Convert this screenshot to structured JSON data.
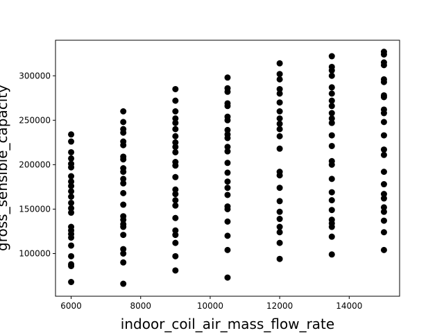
{
  "chart_data": {
    "type": "scatter",
    "xlabel": "indoor_coil_air_mass_flow_rate",
    "ylabel": "gross_sensible_capacity",
    "xlim": [
      5550,
      15450
    ],
    "ylim": [
      52000,
      340000
    ],
    "xticks": [
      6000,
      8000,
      10000,
      12000,
      14000
    ],
    "yticks": [
      100000,
      150000,
      200000,
      250000,
      300000
    ],
    "grid": false,
    "marker_color": "#000000",
    "series": [
      {
        "points": [
          [
            6000,
            234000
          ],
          [
            6000,
            226000
          ],
          [
            6000,
            214000
          ],
          [
            6000,
            207000
          ],
          [
            6000,
            201000
          ],
          [
            6000,
            197000
          ],
          [
            6000,
            187000
          ],
          [
            6000,
            181000
          ],
          [
            6000,
            176000
          ],
          [
            6000,
            170000
          ],
          [
            6000,
            164000
          ],
          [
            6000,
            157000
          ],
          [
            6000,
            151000
          ],
          [
            6000,
            146000
          ],
          [
            6000,
            130000
          ],
          [
            6000,
            126000
          ],
          [
            6000,
            122000
          ],
          [
            6000,
            118000
          ],
          [
            6000,
            109000
          ],
          [
            6000,
            97000
          ],
          [
            6000,
            88000
          ],
          [
            6000,
            86000
          ],
          [
            6000,
            68000
          ],
          [
            7500,
            260000
          ],
          [
            7500,
            248000
          ],
          [
            7500,
            240000
          ],
          [
            7500,
            236000
          ],
          [
            7500,
            226000
          ],
          [
            7500,
            222000
          ],
          [
            7500,
            209000
          ],
          [
            7500,
            206000
          ],
          [
            7500,
            196000
          ],
          [
            7500,
            192000
          ],
          [
            7500,
            184000
          ],
          [
            7500,
            179000
          ],
          [
            7500,
            168000
          ],
          [
            7500,
            155000
          ],
          [
            7500,
            142000
          ],
          [
            7500,
            138000
          ],
          [
            7500,
            133000
          ],
          [
            7500,
            130000
          ],
          [
            7500,
            121000
          ],
          [
            7500,
            105000
          ],
          [
            7500,
            100000
          ],
          [
            7500,
            90000
          ],
          [
            7500,
            66000
          ],
          [
            9000,
            285000
          ],
          [
            9000,
            272000
          ],
          [
            9000,
            260000
          ],
          [
            9000,
            252000
          ],
          [
            9000,
            247000
          ],
          [
            9000,
            240000
          ],
          [
            9000,
            232000
          ],
          [
            9000,
            225000
          ],
          [
            9000,
            220000
          ],
          [
            9000,
            214000
          ],
          [
            9000,
            203000
          ],
          [
            9000,
            199000
          ],
          [
            9000,
            186000
          ],
          [
            9000,
            172000
          ],
          [
            9000,
            167000
          ],
          [
            9000,
            160000
          ],
          [
            9000,
            154000
          ],
          [
            9000,
            140000
          ],
          [
            9000,
            126000
          ],
          [
            9000,
            121000
          ],
          [
            9000,
            112000
          ],
          [
            9000,
            97000
          ],
          [
            9000,
            81000
          ],
          [
            10500,
            298000
          ],
          [
            10500,
            286000
          ],
          [
            10500,
            282000
          ],
          [
            10500,
            269000
          ],
          [
            10500,
            266000
          ],
          [
            10500,
            254000
          ],
          [
            10500,
            250000
          ],
          [
            10500,
            239000
          ],
          [
            10500,
            234000
          ],
          [
            10500,
            230000
          ],
          [
            10500,
            220000
          ],
          [
            10500,
            215000
          ],
          [
            10500,
            202000
          ],
          [
            10500,
            191000
          ],
          [
            10500,
            181000
          ],
          [
            10500,
            174000
          ],
          [
            10500,
            166000
          ],
          [
            10500,
            153000
          ],
          [
            10500,
            150000
          ],
          [
            10500,
            136000
          ],
          [
            10500,
            120000
          ],
          [
            10500,
            104000
          ],
          [
            10500,
            73000
          ],
          [
            12000,
            314000
          ],
          [
            12000,
            302000
          ],
          [
            12000,
            296000
          ],
          [
            12000,
            285000
          ],
          [
            12000,
            280000
          ],
          [
            12000,
            270000
          ],
          [
            12000,
            260000
          ],
          [
            12000,
            252000
          ],
          [
            12000,
            246000
          ],
          [
            12000,
            240000
          ],
          [
            12000,
            232000
          ],
          [
            12000,
            218000
          ],
          [
            12000,
            192000
          ],
          [
            12000,
            188000
          ],
          [
            12000,
            174000
          ],
          [
            12000,
            159000
          ],
          [
            12000,
            147000
          ],
          [
            12000,
            139000
          ],
          [
            12000,
            130000
          ],
          [
            12000,
            124000
          ],
          [
            12000,
            112000
          ],
          [
            12000,
            94000
          ],
          [
            13500,
            322000
          ],
          [
            13500,
            310000
          ],
          [
            13500,
            306000
          ],
          [
            13500,
            300000
          ],
          [
            13500,
            287000
          ],
          [
            13500,
            280000
          ],
          [
            13500,
            272000
          ],
          [
            13500,
            266000
          ],
          [
            13500,
            258000
          ],
          [
            13500,
            252000
          ],
          [
            13500,
            247000
          ],
          [
            13500,
            233000
          ],
          [
            13500,
            221000
          ],
          [
            13500,
            204000
          ],
          [
            13500,
            200000
          ],
          [
            13500,
            184000
          ],
          [
            13500,
            169000
          ],
          [
            13500,
            160000
          ],
          [
            13500,
            149000
          ],
          [
            13500,
            138000
          ],
          [
            13500,
            134000
          ],
          [
            13500,
            130000
          ],
          [
            13500,
            119000
          ],
          [
            13500,
            99000
          ],
          [
            15000,
            327000
          ],
          [
            15000,
            324000
          ],
          [
            15000,
            315000
          ],
          [
            15000,
            312000
          ],
          [
            15000,
            296000
          ],
          [
            15000,
            293000
          ],
          [
            15000,
            278000
          ],
          [
            15000,
            276000
          ],
          [
            15000,
            262000
          ],
          [
            15000,
            258000
          ],
          [
            15000,
            248000
          ],
          [
            15000,
            233000
          ],
          [
            15000,
            217000
          ],
          [
            15000,
            211000
          ],
          [
            15000,
            192000
          ],
          [
            15000,
            178000
          ],
          [
            15000,
            167000
          ],
          [
            15000,
            162000
          ],
          [
            15000,
            152000
          ],
          [
            15000,
            147000
          ],
          [
            15000,
            137000
          ],
          [
            15000,
            124000
          ],
          [
            15000,
            104000
          ]
        ]
      }
    ]
  }
}
